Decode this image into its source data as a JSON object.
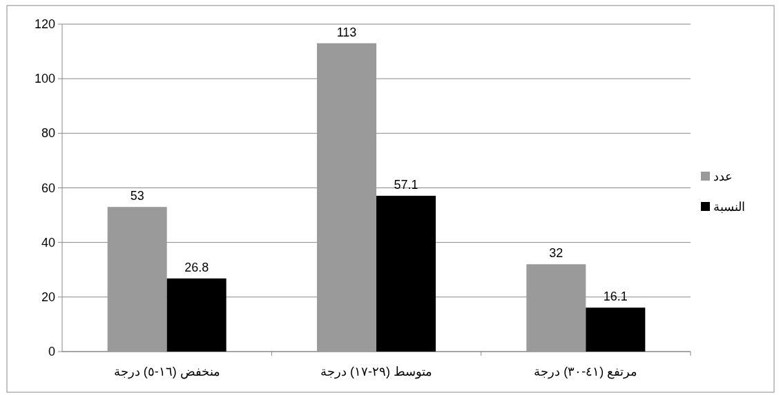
{
  "chart_data": {
    "type": "bar",
    "categories": [
      "منخفض (١٦-٥) درجة",
      "متوسط (٢٩-١٧) درجة",
      "مرتفع (٤١-٣٠) درجة"
    ],
    "series": [
      {
        "name": "عدد",
        "color": "#9a9a9a",
        "values": [
          53,
          113,
          32
        ]
      },
      {
        "name": "النسبة",
        "color": "#000000",
        "values": [
          26.8,
          57.1,
          16.1
        ]
      }
    ],
    "ylim": [
      0,
      120
    ],
    "yticks": [
      0,
      20,
      40,
      60,
      80,
      100,
      120
    ],
    "grid": "y",
    "legend": "right",
    "data_labels": true
  }
}
